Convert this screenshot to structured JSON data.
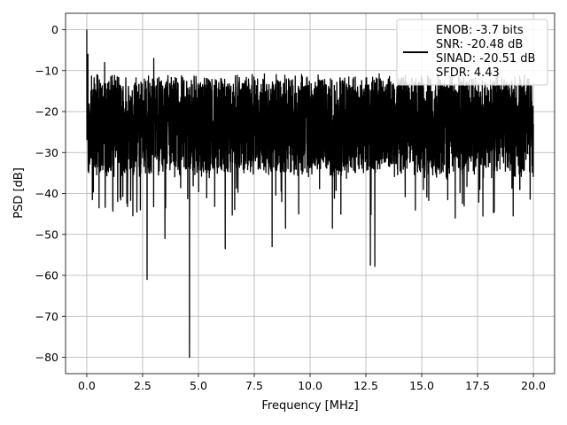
{
  "chart_data": {
    "type": "line",
    "title": "",
    "xlabel": "Frequency [MHz]",
    "ylabel": "PSD [dB]",
    "xlim": [
      -0.95,
      20.95
    ],
    "ylim": [
      -84,
      4
    ],
    "x_ticks": [
      0.0,
      2.5,
      5.0,
      7.5,
      10.0,
      12.5,
      15.0,
      17.5,
      20.0
    ],
    "x_tick_labels": [
      "0.0",
      "2.5",
      "5.0",
      "7.5",
      "10.0",
      "12.5",
      "15.0",
      "17.5",
      "20.0"
    ],
    "y_ticks": [
      0,
      -10,
      -20,
      -30,
      -40,
      -50,
      -60,
      -70,
      -80
    ],
    "y_tick_labels": [
      "0",
      "−10",
      "−20",
      "−30",
      "−40",
      "−50",
      "−60",
      "−70",
      "−80"
    ],
    "grid": true,
    "legend_position": "top-right",
    "legend_lines": [
      "ENOB: -3.7 bits",
      "SNR: -20.48 dB",
      "SINAD: -20.51 dB",
      "SFDR: 4.43"
    ],
    "series": [
      {
        "color": "#000000",
        "noise_band_db": [
          -35,
          -12
        ],
        "notable_points": [
          {
            "x": 0.0,
            "y": 0.0
          },
          {
            "x": 0.05,
            "y": -6.0
          },
          {
            "x": 0.25,
            "y": -41.5
          },
          {
            "x": 0.55,
            "y": -43.5
          },
          {
            "x": 0.8,
            "y": -8.0
          },
          {
            "x": 1.5,
            "y": -41.0
          },
          {
            "x": 2.4,
            "y": -44.0
          },
          {
            "x": 2.7,
            "y": -61.0
          },
          {
            "x": 3.0,
            "y": -7.0
          },
          {
            "x": 3.5,
            "y": -51.0
          },
          {
            "x": 4.6,
            "y": -80.0
          },
          {
            "x": 6.2,
            "y": -53.5
          },
          {
            "x": 8.3,
            "y": -53.0
          },
          {
            "x": 8.9,
            "y": -48.5
          },
          {
            "x": 11.0,
            "y": -48.5
          },
          {
            "x": 12.7,
            "y": -57.5
          },
          {
            "x": 12.9,
            "y": -57.8
          },
          {
            "x": 16.5,
            "y": -46.0
          },
          {
            "x": 20.0,
            "y": -23.0
          }
        ]
      }
    ]
  }
}
